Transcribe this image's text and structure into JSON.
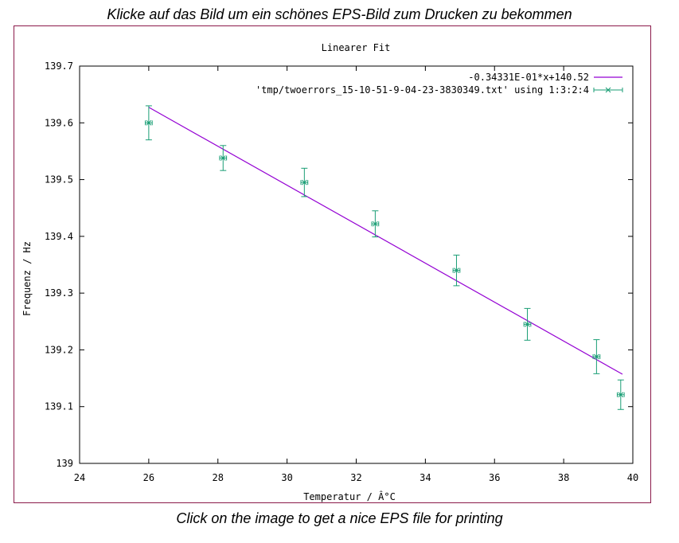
{
  "captions": {
    "top": "Klicke auf das Bild um ein schönes EPS-Bild zum Drucken zu bekommen",
    "bottom": "Click on the image to get a nice EPS file for printing"
  },
  "chart_data": {
    "type": "scatter",
    "title": "Linearer Fit",
    "xlabel": "Temperatur / Â°C",
    "ylabel": "Frequenz / Hz",
    "xlim": [
      24,
      40
    ],
    "ylim": [
      139.0,
      139.7
    ],
    "xticks": [
      "24",
      "26",
      "28",
      "30",
      "32",
      "34",
      "36",
      "38",
      "40"
    ],
    "yticks": [
      "139",
      "139.1",
      "139.2",
      "139.3",
      "139.4",
      "139.5",
      "139.6",
      "139.7"
    ],
    "fit": {
      "name": "-0.34331E-01*x+140.52",
      "color": "#9400d3",
      "x_range": [
        26.0,
        39.7
      ]
    },
    "series": [
      {
        "name": "'tmp/twoerrors_15-10-51-9-04-23-3830349.txt' using 1:3:2:4",
        "color": "#1a9e75",
        "points": [
          {
            "x": 26.0,
            "y": 139.6,
            "yerr": 0.03,
            "xerr": 0.1
          },
          {
            "x": 28.15,
            "y": 139.538,
            "yerr": 0.022,
            "xerr": 0.1
          },
          {
            "x": 30.5,
            "y": 139.495,
            "yerr": 0.025,
            "xerr": 0.1
          },
          {
            "x": 32.55,
            "y": 139.422,
            "yerr": 0.023,
            "xerr": 0.1
          },
          {
            "x": 34.9,
            "y": 139.34,
            "yerr": 0.027,
            "xerr": 0.1
          },
          {
            "x": 36.95,
            "y": 139.245,
            "yerr": 0.028,
            "xerr": 0.1
          },
          {
            "x": 38.95,
            "y": 139.188,
            "yerr": 0.03,
            "xerr": 0.1
          },
          {
            "x": 39.65,
            "y": 139.121,
            "yerr": 0.026,
            "xerr": 0.1
          }
        ]
      }
    ]
  }
}
